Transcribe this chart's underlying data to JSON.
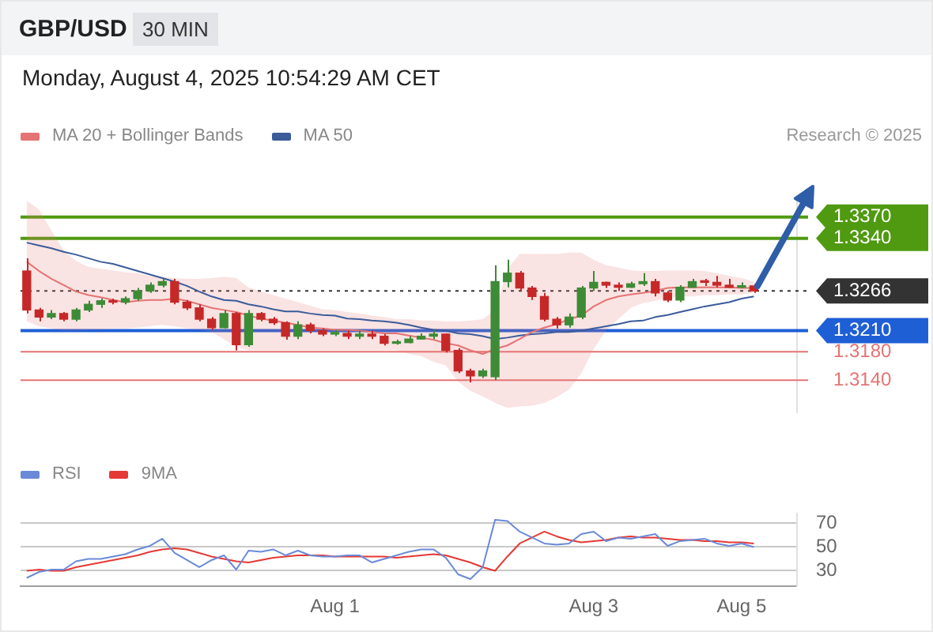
{
  "chart_data": [
    {
      "type": "candlestick",
      "title": "GBP/USD",
      "subtitle": "Monday, August 4, 2025 10:54:29 AM CET",
      "annotations": [
        "30 MIN",
        "Research © 2025"
      ],
      "categories": [
        null,
        null,
        null,
        null,
        null,
        null,
        null,
        null,
        null,
        null,
        null,
        null,
        null,
        null,
        null,
        null,
        null,
        null,
        null,
        null,
        null,
        null,
        null,
        null,
        null,
        null,
        null,
        null,
        null,
        null,
        null,
        null,
        null,
        null,
        null,
        null,
        null,
        null,
        null,
        null,
        null,
        null,
        null,
        null,
        null,
        null,
        null,
        null,
        null,
        null,
        null,
        null,
        null,
        null,
        null,
        null,
        null,
        null,
        null,
        null,
        null,
        null,
        null
      ],
      "ohlc": [
        [
          1.3294,
          1.3312,
          1.3234,
          1.3239
        ],
        [
          1.3239,
          1.3242,
          1.3223,
          1.3229
        ],
        [
          1.3229,
          1.3239,
          1.3226,
          1.3234
        ],
        [
          1.3234,
          1.3236,
          1.3223,
          1.3226
        ],
        [
          1.3226,
          1.3242,
          1.3223,
          1.3239
        ],
        [
          1.3239,
          1.3252,
          1.3236,
          1.3247
        ],
        [
          1.3247,
          1.3255,
          1.3242,
          1.3252
        ],
        [
          1.3252,
          1.3255,
          1.3247,
          1.325
        ],
        [
          1.325,
          1.3258,
          1.3247,
          1.3255
        ],
        [
          1.3255,
          1.327,
          1.3252,
          1.3266
        ],
        [
          1.3266,
          1.3278,
          1.3263,
          1.3274
        ],
        [
          1.3274,
          1.3283,
          1.3271,
          1.3279
        ],
        [
          1.3279,
          1.3283,
          1.3247,
          1.325
        ],
        [
          1.325,
          1.3253,
          1.3239,
          1.3242
        ],
        [
          1.3242,
          1.3247,
          1.3223,
          1.3226
        ],
        [
          1.3226,
          1.3229,
          1.3211,
          1.3214
        ],
        [
          1.3214,
          1.3239,
          1.3213,
          1.3234
        ],
        [
          1.3234,
          1.3236,
          1.3182,
          1.319
        ],
        [
          1.319,
          1.3239,
          1.3187,
          1.3234
        ],
        [
          1.3234,
          1.3236,
          1.3223,
          1.3226
        ],
        [
          1.3226,
          1.3229,
          1.3218,
          1.3221
        ],
        [
          1.3221,
          1.3223,
          1.3197,
          1.3202
        ],
        [
          1.3202,
          1.3223,
          1.3198,
          1.3218
        ],
        [
          1.3218,
          1.3221,
          1.3206,
          1.321
        ],
        [
          1.321,
          1.3213,
          1.3202,
          1.3205
        ],
        [
          1.3205,
          1.3211,
          1.3202,
          1.3206
        ],
        [
          1.3206,
          1.321,
          1.3198,
          1.3202
        ],
        [
          1.3202,
          1.321,
          1.3198,
          1.3205
        ],
        [
          1.3205,
          1.321,
          1.3198,
          1.3202
        ],
        [
          1.3202,
          1.3205,
          1.3189,
          1.3192
        ],
        [
          1.3192,
          1.3197,
          1.319,
          1.3193
        ],
        [
          1.3193,
          1.3202,
          1.3192,
          1.3198
        ],
        [
          1.3198,
          1.3206,
          1.3197,
          1.3202
        ],
        [
          1.3202,
          1.321,
          1.3198,
          1.3205
        ],
        [
          1.3205,
          1.3206,
          1.3179,
          1.3182
        ],
        [
          1.3182,
          1.3185,
          1.315,
          1.3153
        ],
        [
          1.3153,
          1.3156,
          1.3137,
          1.3146
        ],
        [
          1.3146,
          1.3156,
          1.3143,
          1.3153
        ],
        [
          1.3145,
          1.3302,
          1.314,
          1.3279
        ],
        [
          1.3279,
          1.331,
          1.3271,
          1.3291
        ],
        [
          1.3291,
          1.3294,
          1.3266,
          1.327
        ],
        [
          1.327,
          1.3273,
          1.3253,
          1.3258
        ],
        [
          1.3258,
          1.3263,
          1.3223,
          1.3226
        ],
        [
          1.3226,
          1.3229,
          1.3213,
          1.3218
        ],
        [
          1.3218,
          1.3234,
          1.3214,
          1.3229
        ],
        [
          1.3229,
          1.3273,
          1.3226,
          1.327
        ],
        [
          1.327,
          1.3294,
          1.3266,
          1.3278
        ],
        [
          1.3278,
          1.3279,
          1.327,
          1.3274
        ],
        [
          1.3274,
          1.3278,
          1.3266,
          1.3271
        ],
        [
          1.3271,
          1.3279,
          1.327,
          1.3276
        ],
        [
          1.3276,
          1.3291,
          1.3273,
          1.3279
        ],
        [
          1.3279,
          1.3283,
          1.3258,
          1.3263
        ],
        [
          1.3263,
          1.3266,
          1.325,
          1.3253
        ],
        [
          1.3253,
          1.3274,
          1.325,
          1.3271
        ],
        [
          1.3271,
          1.3283,
          1.327,
          1.3279
        ],
        [
          1.3279,
          1.3283,
          1.3273,
          1.3278
        ],
        [
          1.3278,
          1.3287,
          1.3271,
          1.3274
        ],
        [
          1.3274,
          1.3283,
          1.327,
          1.3271
        ],
        [
          1.3271,
          1.3278,
          1.327,
          1.3273
        ],
        [
          1.3273,
          1.3276,
          1.3263,
          1.3266
        ],
        null,
        null,
        null
      ],
      "series": [
        {
          "name": "MA 20 + Bollinger Bands",
          "type": "line",
          "color": "#e57373",
          "values": [
            1.3307,
            1.3294,
            1.3283,
            1.3274,
            1.3265,
            1.326,
            1.3257,
            1.3253,
            1.325,
            1.3252,
            1.3253,
            1.3253,
            1.3255,
            1.3252,
            1.3247,
            1.3242,
            1.3239,
            1.3236,
            1.3231,
            1.3227,
            1.3224,
            1.3221,
            1.3218,
            1.3214,
            1.3213,
            1.3211,
            1.3211,
            1.321,
            1.3208,
            1.3206,
            1.3206,
            1.3203,
            1.32,
            1.3197,
            1.3192,
            1.3189,
            1.3182,
            1.3177,
            1.3184,
            1.3189,
            1.3198,
            1.3208,
            1.3214,
            1.3219,
            1.3226,
            1.3231,
            1.3244,
            1.3253,
            1.3258,
            1.3261,
            1.3263,
            1.3266,
            1.327,
            1.3271,
            1.3271,
            1.3271,
            1.3271,
            1.3271,
            1.327,
            1.327,
            null,
            null,
            null
          ],
          "upper": [
            1.3393,
            1.3381,
            1.3351,
            1.3323,
            1.3308,
            1.33,
            1.3297,
            1.3295,
            1.3292,
            1.3291,
            1.3287,
            1.3286,
            1.3284,
            1.3283,
            1.3283,
            1.3284,
            1.3286,
            1.3284,
            1.3271,
            1.3265,
            1.326,
            1.3255,
            1.325,
            1.3245,
            1.324,
            1.3239,
            1.3236,
            1.3234,
            1.3231,
            1.3229,
            1.3226,
            1.3226,
            1.3224,
            1.3224,
            1.3223,
            1.3223,
            1.3224,
            1.3226,
            1.3239,
            1.3297,
            1.3318,
            1.3318,
            1.3318,
            1.3318,
            1.332,
            1.332,
            1.331,
            1.3302,
            1.3299,
            1.3295,
            1.3294,
            1.3294,
            1.3295,
            1.3295,
            1.3295,
            1.3294,
            1.3291,
            1.3287,
            1.3284,
            1.3279,
            null,
            null,
            null
          ],
          "lower": [
            1.3223,
            1.3216,
            1.3213,
            1.321,
            1.321,
            1.3211,
            1.3211,
            1.3213,
            1.3213,
            1.3214,
            1.3216,
            1.3218,
            1.3216,
            1.3213,
            1.3211,
            1.3208,
            1.3198,
            1.3187,
            1.3182,
            1.3182,
            1.3182,
            1.3182,
            1.3182,
            1.3182,
            1.3182,
            1.3182,
            1.3182,
            1.3182,
            1.3182,
            1.3182,
            1.3182,
            1.3177,
            1.3174,
            1.3166,
            1.3161,
            1.3138,
            1.3125,
            1.3117,
            1.3108,
            1.3101,
            1.3103,
            1.3104,
            1.3108,
            1.3116,
            1.3127,
            1.315,
            1.3184,
            1.321,
            1.3226,
            1.3242,
            1.3249,
            1.3252,
            1.3255,
            1.3258,
            1.3258,
            1.326,
            1.326,
            1.3261,
            1.3261,
            1.3263,
            null,
            null,
            null
          ]
        },
        {
          "name": "MA 50",
          "type": "line",
          "color": "#3b5b9a",
          "values": [
            1.3334,
            1.333,
            1.3326,
            1.3321,
            1.3317,
            1.3312,
            1.3307,
            1.3304,
            1.3299,
            1.3294,
            1.3289,
            1.3284,
            1.3279,
            1.3273,
            1.3265,
            1.3258,
            1.3253,
            1.3252,
            1.3247,
            1.3244,
            1.324,
            1.3237,
            1.3237,
            1.3234,
            1.3232,
            1.3231,
            1.3227,
            1.3226,
            1.3224,
            1.3223,
            1.3221,
            1.3218,
            1.3214,
            1.3211,
            1.321,
            1.3206,
            1.3205,
            1.3202,
            1.3198,
            1.32,
            1.3203,
            1.3205,
            1.3206,
            1.3208,
            1.3208,
            1.321,
            1.3213,
            1.3216,
            1.3219,
            1.3223,
            1.3224,
            1.3229,
            1.3232,
            1.3236,
            1.324,
            1.3244,
            1.3247,
            1.325,
            1.3255,
            1.3258,
            null,
            null,
            null
          ]
        }
      ],
      "ref_lines": [
        {
          "axis": "y",
          "value": 1.337,
          "color": "#4f9a10"
        },
        {
          "axis": "y",
          "value": 1.334,
          "color": "#4f9a10"
        },
        {
          "axis": "y",
          "value": 1.3266,
          "color": "#333333",
          "line_style": "dotted"
        },
        {
          "axis": "y",
          "value": 1.321,
          "color": "#1f5fd6"
        },
        {
          "axis": "y",
          "value": 1.318,
          "color": "#e57373"
        },
        {
          "axis": "y",
          "value": 1.314,
          "color": "#e57373"
        }
      ],
      "ylim": [
        1.3095,
        1.3395
      ],
      "yticks": [
        {
          "value": 1.337,
          "label": "1.3370"
        },
        {
          "value": 1.334,
          "label": "1.3340"
        },
        {
          "value": 1.3266,
          "label": "1.3266"
        },
        {
          "value": 1.321,
          "label": "1.3210"
        },
        {
          "value": 1.318,
          "label": "1.3180"
        },
        {
          "value": 1.314,
          "label": "1.3140"
        }
      ],
      "legend": "top left",
      "tick_labels": "y"
    },
    {
      "type": "line",
      "categories": [
        null,
        null,
        null,
        null,
        null,
        null,
        null,
        null,
        null,
        null,
        null,
        null,
        null,
        null,
        null,
        null,
        null,
        null,
        null,
        null,
        null,
        null,
        null,
        null,
        null,
        "Aug 1",
        null,
        null,
        null,
        null,
        null,
        null,
        null,
        null,
        null,
        null,
        null,
        null,
        null,
        null,
        null,
        null,
        null,
        null,
        null,
        null,
        "Aug 3",
        null,
        null,
        null,
        null,
        null,
        null,
        null,
        null,
        null,
        null,
        null,
        "Aug 5",
        null,
        null,
        null,
        null
      ],
      "series": [
        {
          "name": "RSI",
          "color": "#6a8ad8",
          "values": [
            24,
            29,
            31,
            31,
            38,
            40,
            40,
            42,
            44,
            48,
            51,
            57,
            45,
            39,
            33,
            39,
            43,
            31,
            47,
            46,
            48,
            43,
            47,
            43,
            42,
            42,
            43,
            43,
            37,
            40,
            43,
            46,
            48,
            48,
            41,
            27,
            23,
            33,
            73,
            72,
            63,
            58,
            53,
            52,
            53,
            61,
            63,
            55,
            58,
            57,
            59,
            61,
            51,
            55,
            56,
            57,
            53,
            51,
            53,
            50,
            null,
            null,
            null
          ]
        },
        {
          "name": "9MA",
          "color": "#e53935",
          "values": [
            30,
            31,
            30,
            30,
            33,
            35,
            37,
            39,
            41,
            43,
            46,
            48,
            49,
            48,
            45,
            42,
            40,
            38,
            37,
            39,
            41,
            42,
            43,
            43,
            43,
            42,
            42,
            42,
            42,
            42,
            41,
            42,
            43,
            44,
            43,
            40,
            37,
            33,
            30,
            42,
            53,
            58,
            63,
            59,
            56,
            54,
            55,
            56,
            58,
            59,
            58,
            58,
            57,
            56,
            56,
            55,
            55,
            54,
            54,
            53,
            null,
            null,
            null
          ]
        }
      ],
      "ylim": [
        17,
        78
      ],
      "yticks": [
        30,
        50,
        70
      ],
      "grid": "y",
      "legend": "top left"
    }
  ]
}
